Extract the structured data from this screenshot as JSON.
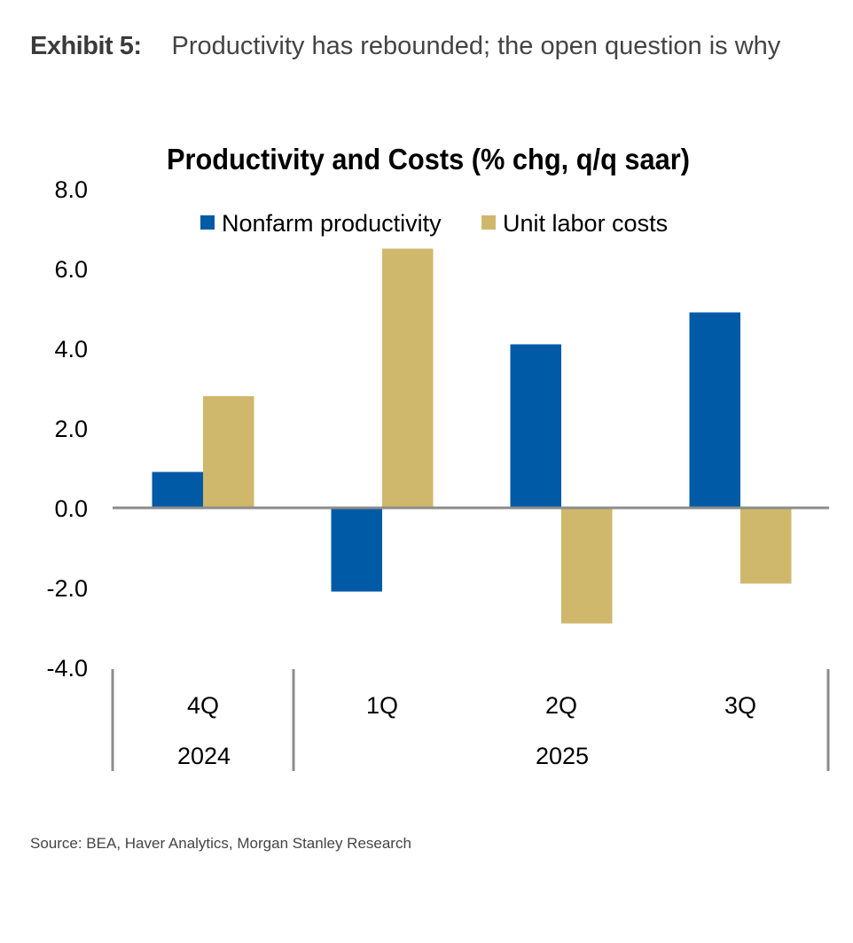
{
  "exhibit": {
    "label": "Exhibit 5:",
    "title": "Productivity has rebounded; the open question is why"
  },
  "source": "Source: BEA, Haver Analytics, Morgan Stanley Research",
  "chart_data": {
    "type": "bar",
    "title": "Productivity and Costs (% chg, q/q saar)",
    "xlabel": "",
    "ylabel": "",
    "categories": [
      "4Q",
      "1Q",
      "2Q",
      "3Q"
    ],
    "category_groups": [
      {
        "label": "2024",
        "categories": [
          "4Q"
        ]
      },
      {
        "label": "2025",
        "categories": [
          "1Q",
          "2Q",
          "3Q"
        ]
      }
    ],
    "series": [
      {
        "name": "Nonfarm productivity",
        "color": "#005AA6",
        "values": [
          0.9,
          -2.1,
          4.1,
          4.9
        ]
      },
      {
        "name": "Unit labor costs",
        "color": "#CFB86C",
        "values": [
          2.8,
          6.5,
          -2.9,
          -1.9
        ]
      }
    ],
    "ylim": [
      -4.0,
      8.0
    ],
    "yticks": [
      8.0,
      6.0,
      4.0,
      2.0,
      0.0,
      -2.0,
      -4.0
    ],
    "ytick_labels": [
      "8.0",
      "6.0",
      "4.0",
      "2.0",
      "0.0",
      "-2.0",
      "-4.0"
    ],
    "grid": false,
    "legend_position": "top-center",
    "zero_line_color": "#8C8C8C"
  }
}
